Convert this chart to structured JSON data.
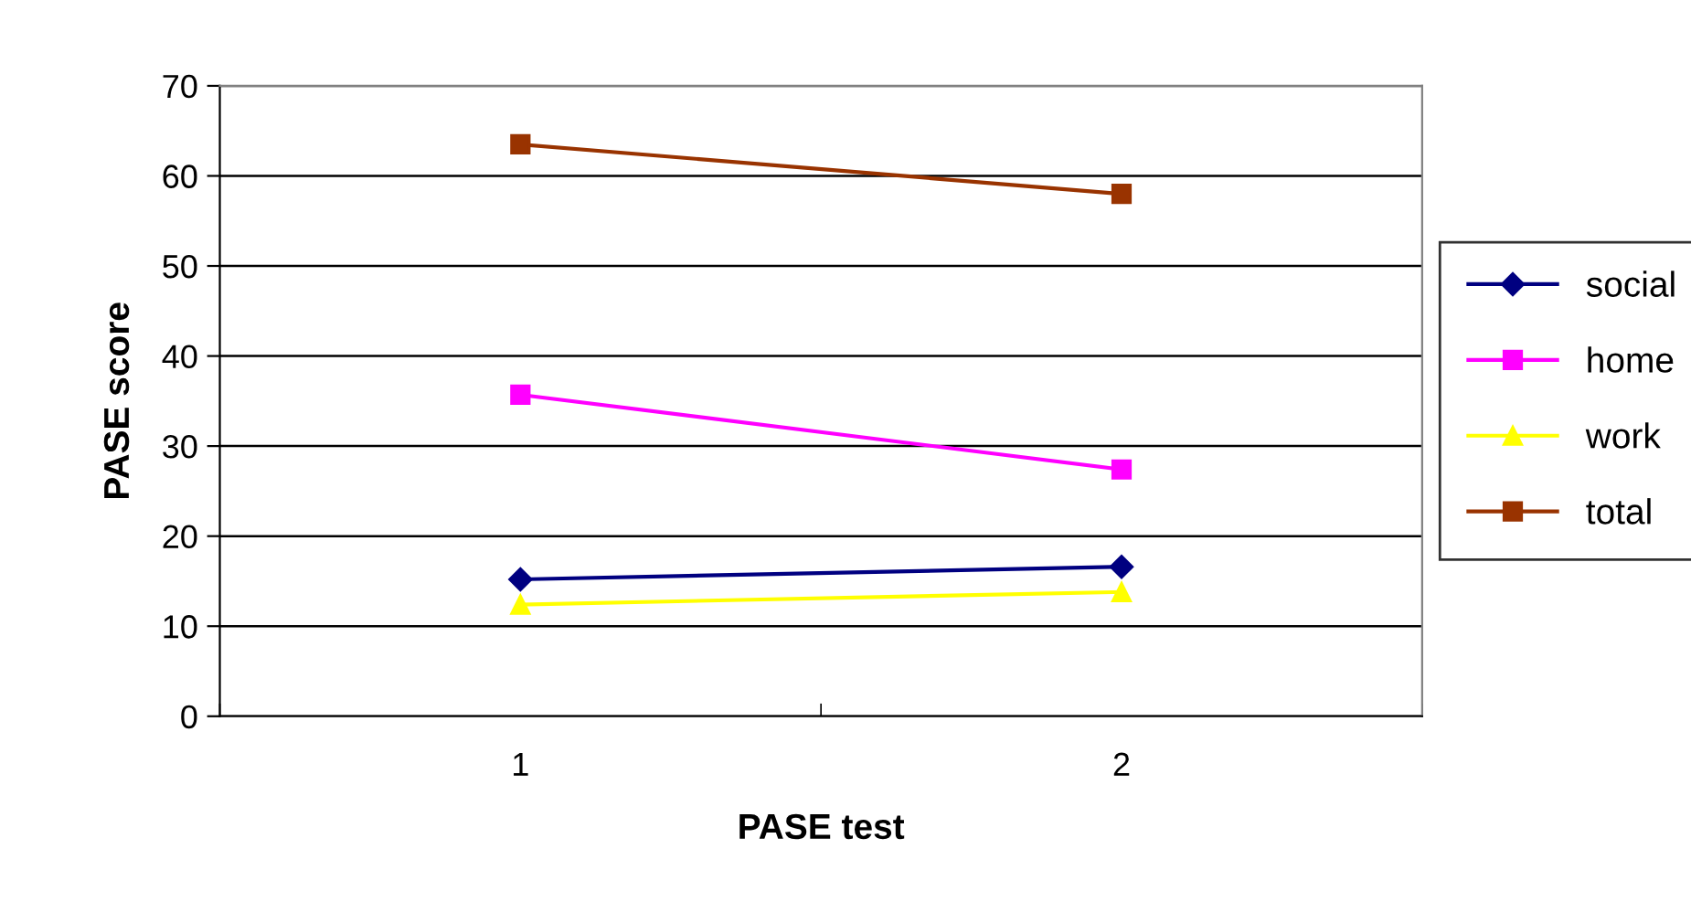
{
  "chart_data": {
    "type": "line",
    "xlabel": "PASE test",
    "ylabel": "PASE score",
    "categories": [
      "1",
      "2"
    ],
    "series": [
      {
        "name": "social",
        "color": "#000080",
        "marker": "diamond",
        "values": [
          15.2,
          16.6
        ]
      },
      {
        "name": "home",
        "color": "#ff00ff",
        "marker": "square",
        "values": [
          35.7,
          27.4
        ]
      },
      {
        "name": "work",
        "color": "#ffff00",
        "marker": "triangle",
        "values": [
          12.4,
          13.8
        ]
      },
      {
        "name": "total",
        "color": "#993300",
        "marker": "square",
        "values": [
          63.5,
          58.0
        ]
      }
    ],
    "ylim": [
      0,
      70
    ],
    "yticks": [
      0,
      10,
      20,
      30,
      40,
      50,
      60,
      70
    ],
    "grid": "y",
    "legend": "right"
  }
}
